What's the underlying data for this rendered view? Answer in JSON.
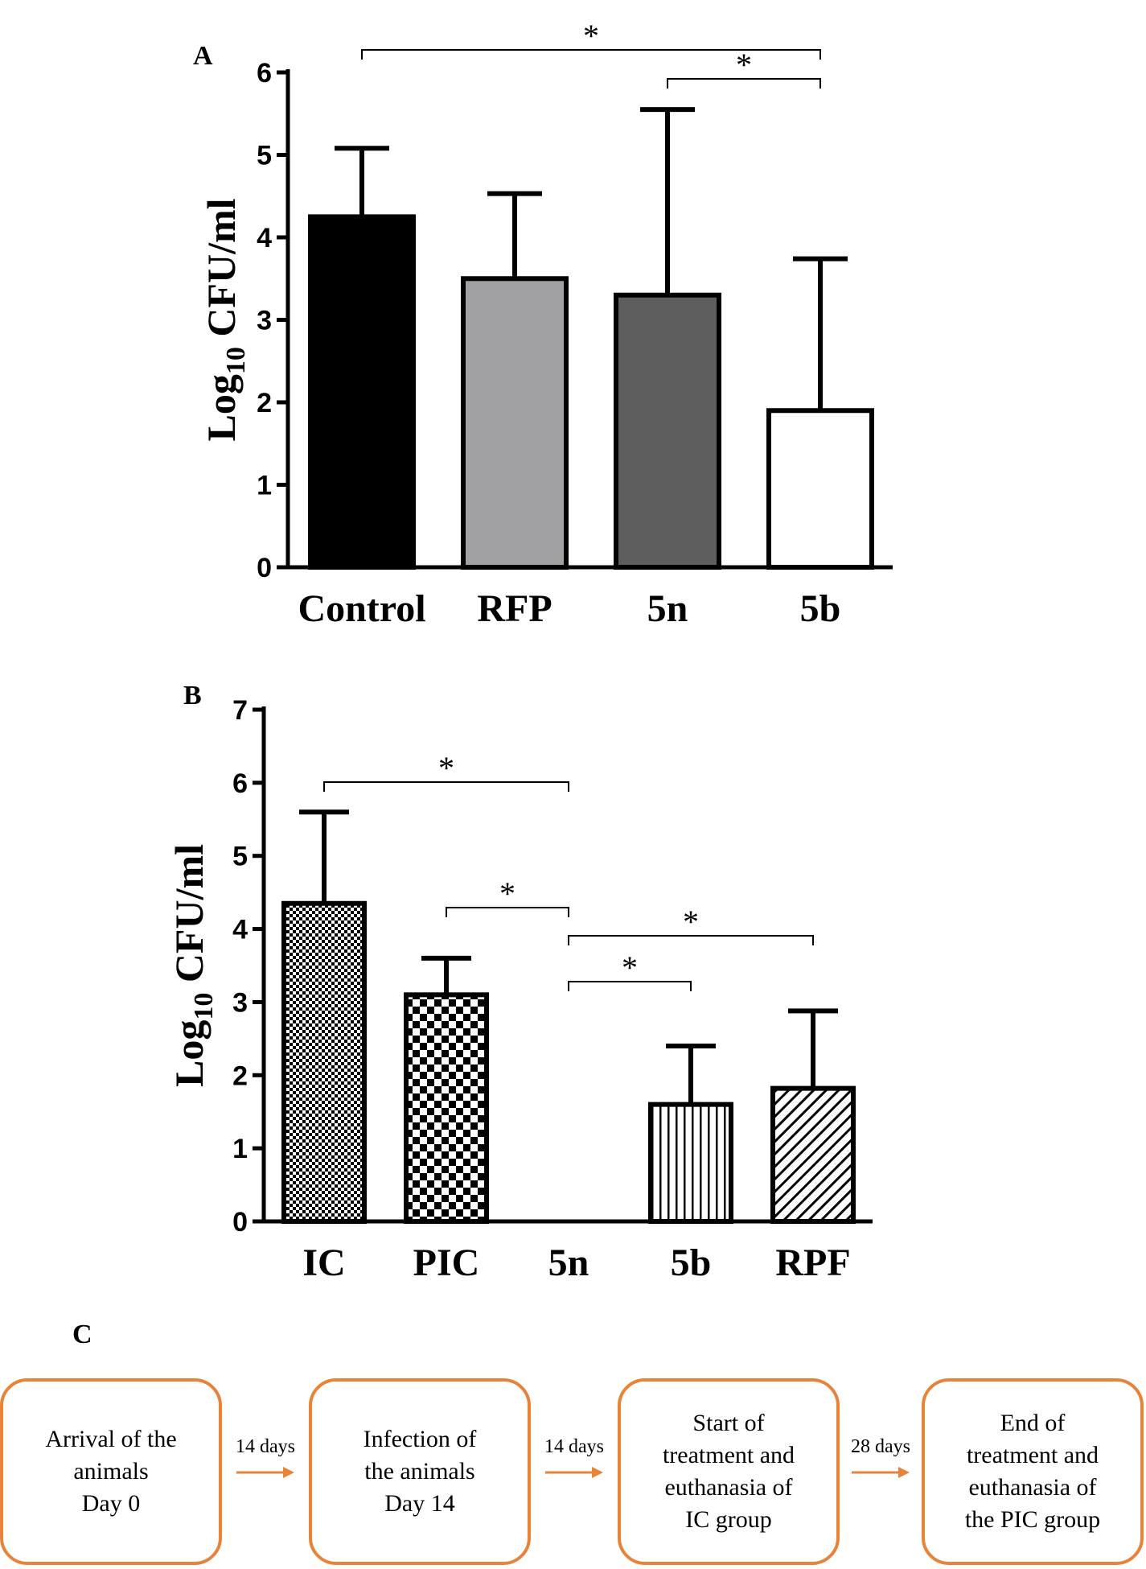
{
  "chart_data": [
    {
      "panel": "A",
      "type": "bar",
      "ylabel_base": "Log",
      "ylabel_sub": "10",
      "ylabel_rest": " CFU/ml",
      "ylim": [
        0,
        6
      ],
      "yticks": [
        "0",
        "1",
        "2",
        "3",
        "4",
        "5",
        "6"
      ],
      "categories": [
        "Control",
        "RFP",
        "5n",
        "5b"
      ],
      "values": [
        4.25,
        3.5,
        3.3,
        1.9
      ],
      "errors_upper": [
        5.08,
        4.53,
        5.55,
        3.74
      ],
      "fills": [
        "#000000",
        "#a0a0a2",
        "#5e5e5e",
        "#ffffff"
      ],
      "significance": [
        {
          "from": 0,
          "to": 3,
          "label": "*"
        },
        {
          "from": 2,
          "to": 3,
          "label": "*"
        }
      ]
    },
    {
      "panel": "B",
      "type": "bar",
      "ylabel_base": "Log",
      "ylabel_sub": "10",
      "ylabel_rest": " CFU/ml",
      "ylim": [
        0,
        7
      ],
      "yticks": [
        "0",
        "1",
        "2",
        "3",
        "4",
        "5",
        "6",
        "7"
      ],
      "categories": [
        "IC",
        "PIC",
        "5n",
        "5b",
        "RPF"
      ],
      "values": [
        4.35,
        3.1,
        0,
        1.6,
        1.82
      ],
      "errors_upper": [
        5.6,
        3.6,
        0,
        2.4,
        2.88
      ],
      "patterns": [
        "fine-checker",
        "coarse-checker",
        "none",
        "vertical-lines",
        "diagonal-lines"
      ],
      "significance": [
        {
          "from": 0,
          "to": 2,
          "label": "*"
        },
        {
          "from": 1,
          "to": 2,
          "label": "*"
        },
        {
          "from": 2,
          "to": 4,
          "label": "*"
        },
        {
          "from": 2,
          "to": 3,
          "label": "*"
        }
      ]
    }
  ],
  "panel_c": {
    "letter": "C",
    "accent": "#e8833a",
    "steps": [
      {
        "lines": [
          "Arrival of the",
          "animals",
          "Day 0"
        ]
      },
      {
        "lines": [
          "Infection of",
          "the animals",
          "Day 14"
        ]
      },
      {
        "lines": [
          "Start of",
          "treatment and",
          "euthanasia of",
          "IC group"
        ]
      },
      {
        "lines": [
          "End of",
          "treatment and",
          "euthanasia of",
          "the PIC group"
        ]
      }
    ],
    "intervals": [
      "14 days",
      "14 days",
      "28 days"
    ]
  }
}
